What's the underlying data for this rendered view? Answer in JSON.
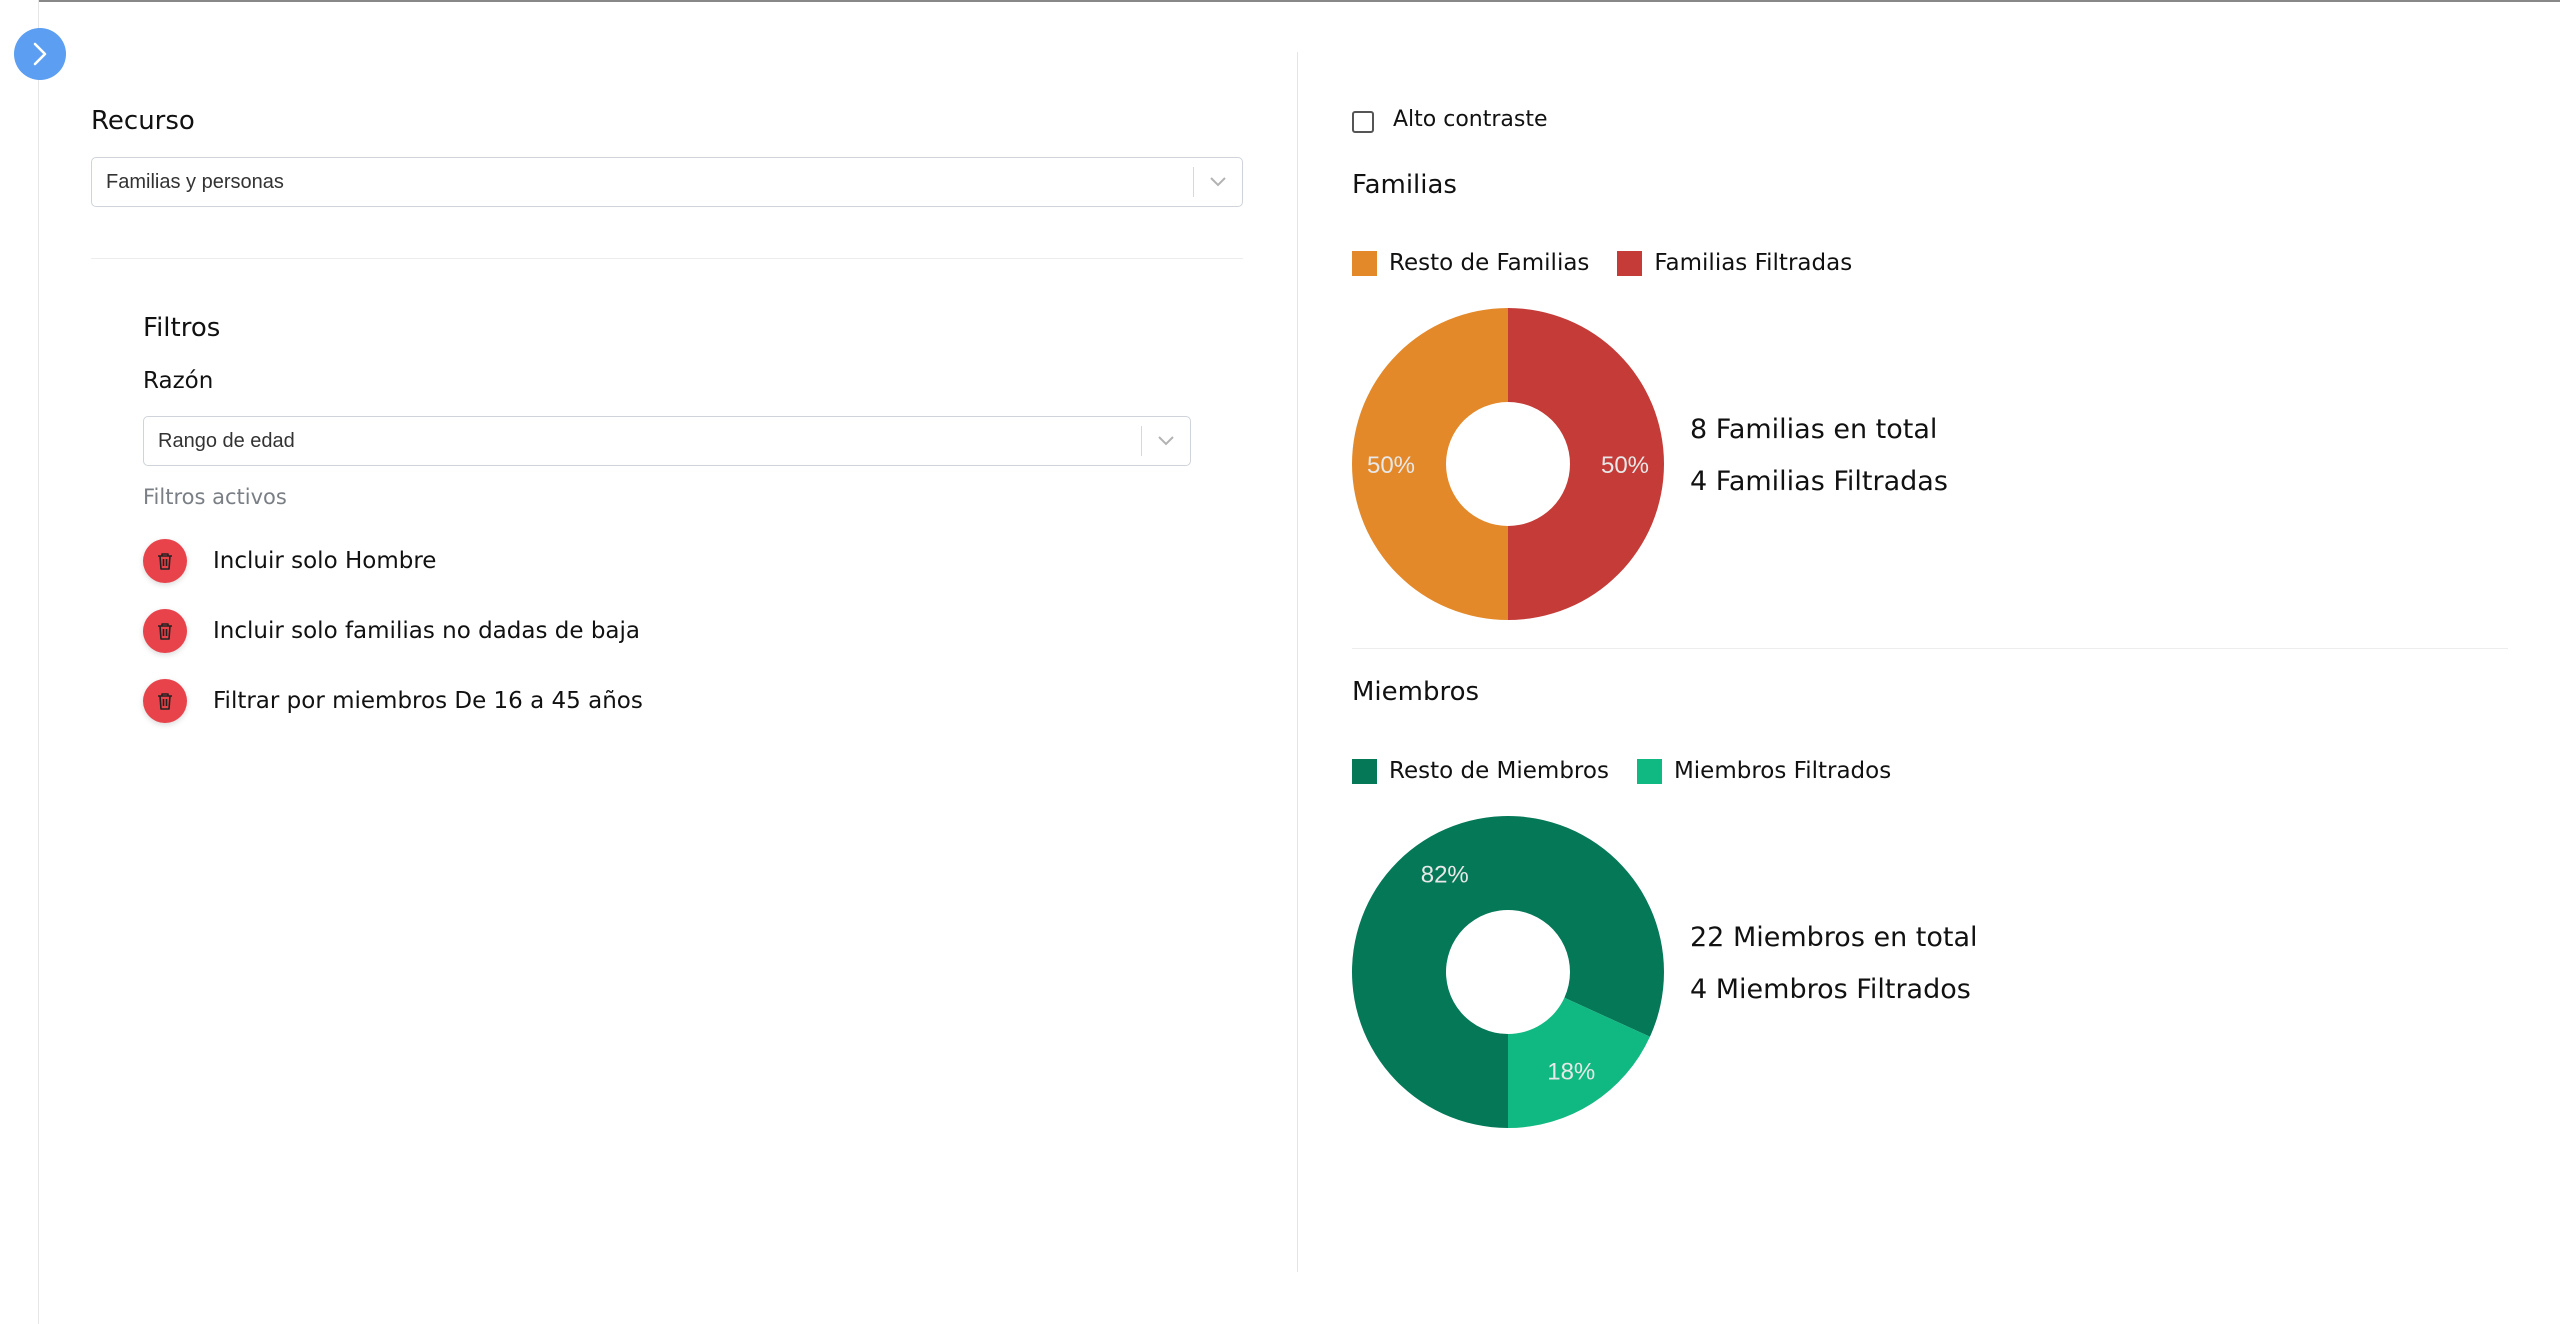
{
  "left": {
    "resource_title": "Recurso",
    "resource_value": "Familias y personas",
    "filters_title": "Filtros",
    "reason_label": "Razón",
    "reason_value": "Rango de edad",
    "active_filters_label": "Filtros activos",
    "active_filters": [
      "Incluir solo Hombre",
      "Incluir solo familias no dadas de baja",
      "Filtrar por miembros De 16 a 45 años"
    ]
  },
  "right": {
    "contrast_label": "Alto contraste",
    "contrast_checked": false,
    "families": {
      "title": "Familias",
      "legend": [
        "Resto de Familias",
        "Familias Filtradas"
      ],
      "total_text": "8 Familias en total",
      "filtered_text": "4 Familias Filtradas"
    },
    "members": {
      "title": "Miembros",
      "legend": [
        "Resto de Miembros",
        "Miembros Filtrados"
      ],
      "total_text": "22 Miembros en total",
      "filtered_text": "4 Miembros Filtrados"
    }
  },
  "colors": {
    "accent": "#5b9ef2",
    "danger": "#e8424a",
    "family_rest": "#e3892a",
    "family_filtered": "#c43b37",
    "member_rest": "#047857",
    "member_filtered": "#10b981"
  },
  "chart_data": [
    {
      "type": "pie",
      "title": "Familias",
      "categories": [
        "Resto de Familias",
        "Familias Filtradas"
      ],
      "values": [
        4,
        4
      ],
      "labels": [
        "50%",
        "50%"
      ],
      "colors": [
        "#e3892a",
        "#c43b37"
      ]
    },
    {
      "type": "pie",
      "title": "Miembros",
      "categories": [
        "Resto de Miembros",
        "Miembros Filtrados"
      ],
      "values": [
        18,
        4
      ],
      "labels": [
        "82%",
        "18%"
      ],
      "colors": [
        "#047857",
        "#10b981"
      ]
    }
  ]
}
